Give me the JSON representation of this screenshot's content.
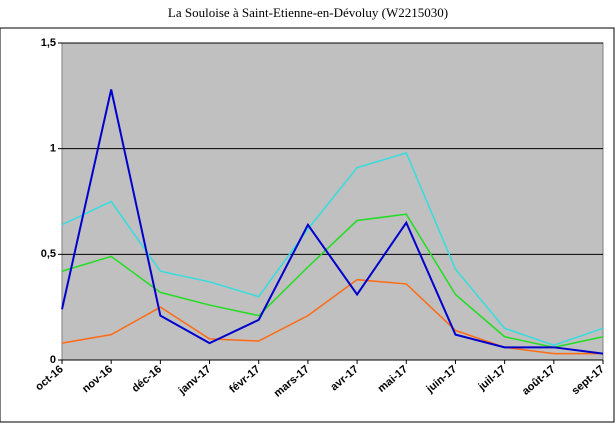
{
  "chart_data": {
    "type": "line",
    "title": "La Souloise à Saint-Etienne-en-Dévoluy (W2215030)",
    "categories": [
      "oct-16",
      "nov-16",
      "déc-16",
      "janv-17",
      "févr-17",
      "mars-17",
      "avr-17",
      "mai-17",
      "juin-17",
      "juil-17",
      "août-17",
      "sept-17"
    ],
    "series": [
      {
        "color": "#ff6a13",
        "values": [
          0.08,
          0.12,
          0.25,
          0.1,
          0.09,
          0.21,
          0.38,
          0.36,
          0.14,
          0.06,
          0.03,
          0.03
        ]
      },
      {
        "color": "#22dd22",
        "values": [
          0.42,
          0.49,
          0.32,
          0.26,
          0.21,
          0.44,
          0.66,
          0.69,
          0.31,
          0.11,
          0.06,
          0.11
        ]
      },
      {
        "color": "#33dddd",
        "values": [
          0.64,
          0.75,
          0.42,
          0.37,
          0.3,
          0.62,
          0.91,
          0.98,
          0.43,
          0.15,
          0.07,
          0.15
        ]
      },
      {
        "color": "#0000cc",
        "values": [
          0.24,
          1.28,
          0.21,
          0.08,
          0.19,
          0.64,
          0.31,
          0.65,
          0.12,
          0.06,
          0.06,
          0.03
        ]
      }
    ],
    "ylim": [
      0,
      1.5
    ],
    "yticks": [
      0,
      {
        "value": 0.5,
        "label": "0,5"
      },
      1,
      {
        "value": 1.5,
        "label": "1,5"
      }
    ],
    "grid": true,
    "plot_background": "#c0c0c0"
  }
}
